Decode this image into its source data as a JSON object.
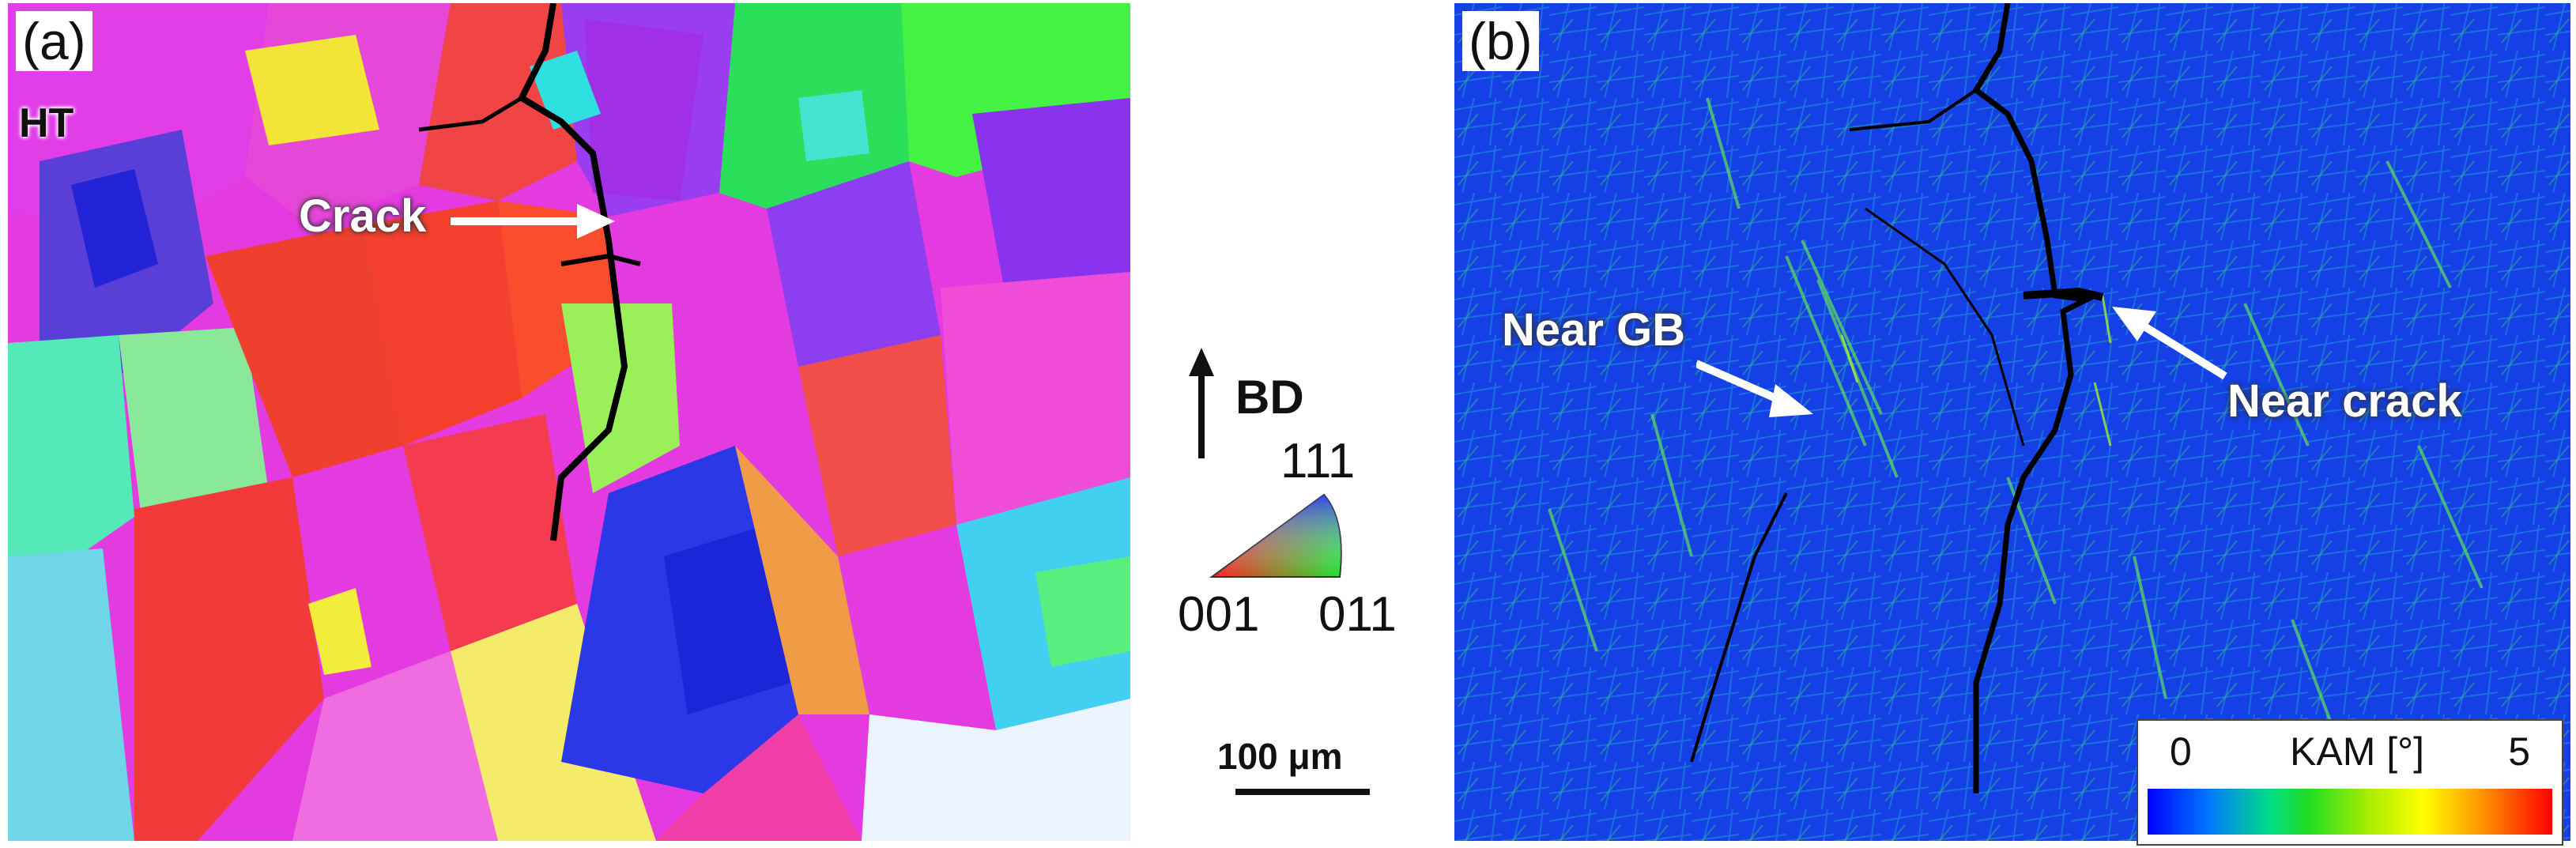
{
  "panel_a": {
    "label": "(a)",
    "condition": "HT",
    "annotation": "Crack"
  },
  "key": {
    "build_direction": "BD",
    "ipf_corners": {
      "top": "111",
      "left": "001",
      "right": "011"
    },
    "scale_bar": "100 μm"
  },
  "panel_b": {
    "label": "(b)",
    "annotations": [
      "Near GB",
      "Near crack"
    ],
    "colorbar": {
      "min": "0",
      "title": "KAM [°]",
      "max": "5"
    }
  }
}
